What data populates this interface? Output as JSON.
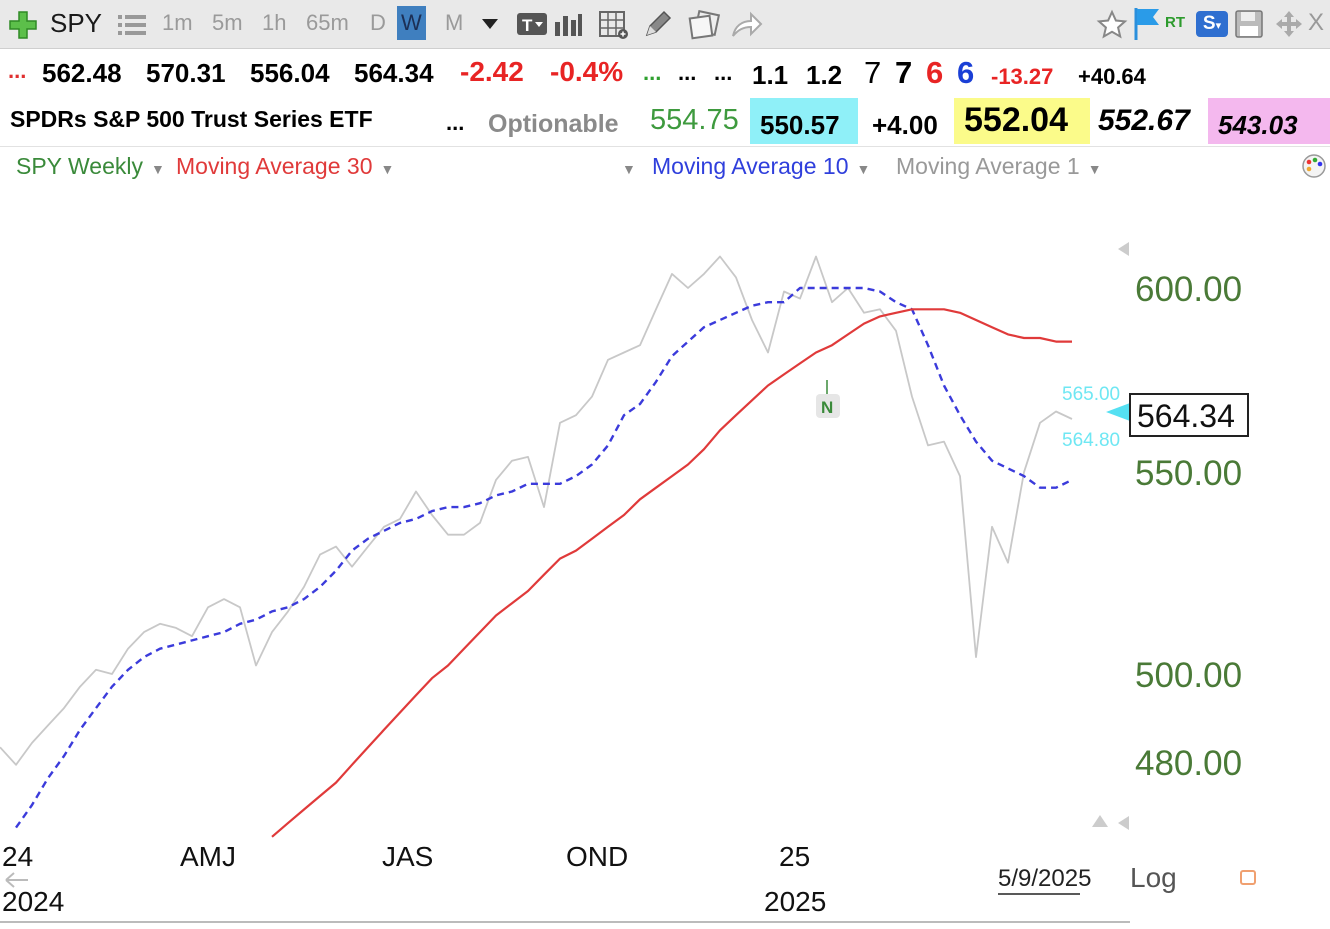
{
  "toolbar": {
    "symbol": "SPY",
    "intervals": [
      "1m",
      "5m",
      "1h",
      "65m",
      "D",
      "W",
      "M"
    ],
    "selected_interval": "W",
    "rt_label": "RT",
    "s_label": "S",
    "close_label": "X"
  },
  "quote_row1": {
    "lead": "...",
    "open": "562.48",
    "high": "570.31",
    "low": "556.04",
    "last": "564.34",
    "change": "-2.42",
    "change_pct": "-0.4%",
    "dots_green": "...",
    "dots1": "...",
    "dots2": "...",
    "v1": "1.1",
    "v2": "1.2",
    "n1": "7",
    "n2": "7",
    "n3": "6",
    "n4": "6",
    "neg": "-13.27",
    "pos": "+40.64"
  },
  "quote_row2": {
    "name": "SPDRs S&P 500 Trust Series ETF",
    "dots": "...",
    "optionable": "Optionable",
    "p1": "554.75",
    "p2": "550.57",
    "p3": "+4.00",
    "p4": "552.04",
    "p5": "552.67",
    "p6": "543.03"
  },
  "legend": {
    "main": "SPY Weekly",
    "ma30": "Moving Average 30",
    "ma10": "Moving Average 10",
    "ma1": "Moving Average 1"
  },
  "chart_data": {
    "type": "line",
    "y_scale": "log",
    "ylim": [
      463,
      612
    ],
    "y_ticks": [
      "600.00",
      "550.00",
      "500.00",
      "480.00"
    ],
    "x_tick_labels": [
      "24",
      "AMJ",
      "JAS",
      "OND",
      "25"
    ],
    "x_year_labels": [
      "2024",
      "2025"
    ],
    "date_label": "5/9/2025",
    "log_label": "Log",
    "price_label": "564.34",
    "small_labels": [
      "565.00",
      "564.80"
    ],
    "marker": "N",
    "series": [
      {
        "name": "Moving Average 1",
        "color": "#c8c8c8",
        "values": [
          483,
          479,
          484,
          488,
          492,
          497,
          501,
          500,
          506,
          510,
          512,
          511,
          509,
          516,
          518,
          516,
          502,
          510,
          515,
          521,
          529,
          531,
          526,
          531,
          536,
          538,
          545,
          539,
          534,
          534,
          537,
          548,
          553,
          554,
          541,
          563,
          565,
          570,
          580,
          582,
          584,
          594,
          604,
          600,
          604,
          609,
          603,
          591,
          582,
          599,
          597,
          609,
          596,
          600,
          593,
          594,
          588,
          570,
          557,
          558,
          549,
          504,
          536,
          527,
          550,
          563,
          566,
          564
        ],
        "style": "solid"
      },
      {
        "name": "Moving Average 10",
        "color": "#3b3bdb",
        "values": [
          null,
          465,
          470,
          476,
          481,
          487,
          492,
          497,
          501,
          504,
          506,
          507,
          508,
          509,
          510,
          512,
          513,
          515,
          516,
          518,
          521,
          525,
          530,
          533,
          535,
          537,
          538,
          540,
          541,
          541,
          542,
          544,
          545,
          547,
          547,
          547,
          549,
          552,
          557,
          565,
          568,
          574,
          581,
          585,
          589,
          591,
          593,
          595,
          596,
          596,
          600,
          600,
          600,
          600,
          600,
          599,
          596,
          594,
          584,
          573,
          565,
          558,
          553,
          551,
          549,
          546,
          546,
          548
        ],
        "style": "dashed"
      },
      {
        "name": "Moving Average 30",
        "color": "#e03a3a",
        "values": [
          null,
          null,
          null,
          null,
          null,
          null,
          null,
          null,
          null,
          null,
          null,
          null,
          null,
          null,
          null,
          null,
          null,
          463,
          466,
          469,
          472,
          475,
          479,
          483,
          487,
          491,
          495,
          499,
          502,
          506,
          510,
          514,
          517,
          520,
          524,
          528,
          530,
          533,
          536,
          539,
          543,
          546,
          549,
          552,
          556,
          561,
          565,
          569,
          573,
          576,
          579,
          582,
          584,
          587,
          590,
          592,
          593,
          594,
          594,
          594,
          593,
          591,
          589,
          587,
          586,
          586,
          585,
          585
        ],
        "style": "solid"
      }
    ]
  }
}
